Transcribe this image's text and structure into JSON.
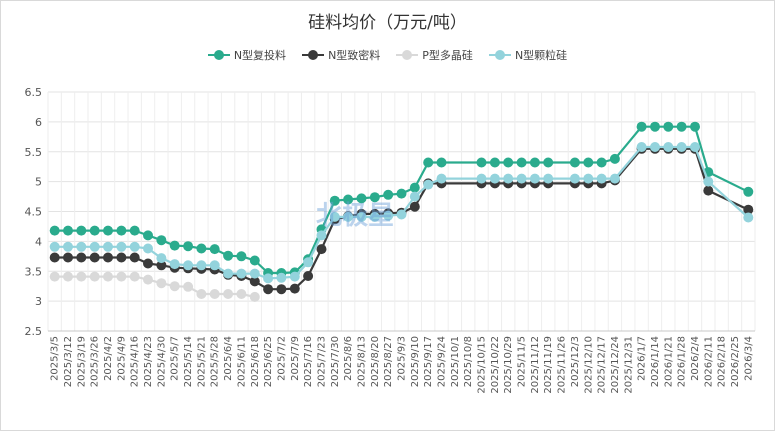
{
  "chart_data": {
    "type": "line",
    "title": "硅料均价（万元/吨）",
    "xlabel": "",
    "ylabel": "",
    "ylim": [
      2.5,
      6.5
    ],
    "yticks": [
      "2.5",
      "3",
      "3.5",
      "4",
      "4.5",
      "5",
      "5.5",
      "6",
      "6.5"
    ],
    "grid": true,
    "legend": "top-center",
    "x": [
      "2025/3/5",
      "2025/3/12",
      "2025/3/19",
      "2025/3/26",
      "2025/4/2",
      "2025/4/9",
      "2025/4/16",
      "2025/4/23",
      "2025/4/30",
      "2025/5/7",
      "2025/5/14",
      "2025/5/21",
      "2025/5/28",
      "2025/6/4",
      "2025/6/11",
      "2025/6/18",
      "2025/6/25",
      "2025/7/2",
      "2025/7/9",
      "2025/7/16",
      "2025/7/23",
      "2025/7/30",
      "2025/8/6",
      "2025/8/13",
      "2025/8/20",
      "2025/8/27",
      "2025/9/3",
      "2025/9/10",
      "2025/9/17",
      "2025/9/24",
      "2025/10/1",
      "2025/10/8",
      "2025/10/15",
      "2025/10/22",
      "2025/10/29",
      "2025/11/5",
      "2025/11/12",
      "2025/11/19",
      "2025/11/26",
      "2025/12/3",
      "2025/12/10",
      "2025/12/17",
      "2025/12/24",
      "2025/12/31",
      "2026/1/7",
      "2026/1/14",
      "2026/1/21",
      "2026/1/28",
      "2026/2/4",
      "2026/2/11",
      "2026/2/18",
      "2026/2/25",
      "2026/3/4"
    ],
    "x_tick_labels": [
      "2025/3/5",
      "2025/3/12",
      "2025/3/19",
      "2025/3/26",
      "2025/4/2",
      "2025/4/9",
      "2025/4/16",
      "2025/4/23",
      "2025/4/30",
      "2025/5/7",
      "2025/5/14",
      "2025/5/21",
      "2025/5/28",
      "2025/6/4",
      "2025/6/11",
      "2025/6/18",
      "2025/6/25",
      "2025/7/2",
      "2025/7/9",
      "2025/7/16",
      "2025/7/23",
      "2025/7/30",
      "2025/8/6",
      "2025/8/13",
      "2025/8/20",
      "2025/8/27",
      "2025/9/3",
      "2025/9/10",
      "2025/9/17",
      "2025/9/24",
      "2025/10/1",
      "2025/10/8",
      "2025/10/15",
      "2025/10/22",
      "2025/10/29",
      "2025/11/5",
      "2025/11/12",
      "2025/11/19",
      "2025/11/26",
      "2025/12/3",
      "2025/12/10",
      "2025/12/17",
      "2025/12/24",
      "2025/12/31",
      "2026/1/7",
      "2026/1/14",
      "2026/1/21",
      "2026/1/28",
      "2026/2/4",
      "2026/2/11",
      "2026/2/18",
      "2026/2/25",
      "2026/3/4"
    ],
    "series": [
      {
        "name": "N型复投料",
        "color": "#2aab8d",
        "values": [
          4.18,
          4.18,
          4.18,
          4.18,
          4.18,
          4.18,
          4.18,
          4.1,
          4.02,
          3.93,
          3.92,
          3.88,
          3.87,
          3.76,
          3.75,
          3.68,
          3.47,
          3.47,
          3.48,
          3.7,
          4.2,
          4.68,
          4.7,
          4.72,
          4.74,
          4.78,
          4.8,
          4.9,
          5.32,
          5.32,
          null,
          null,
          5.32,
          5.32,
          5.32,
          5.32,
          5.32,
          5.32,
          null,
          5.32,
          5.32,
          5.32,
          5.38,
          null,
          5.92,
          5.92,
          5.92,
          5.92,
          5.92,
          5.16,
          null,
          null,
          4.83
        ]
      },
      {
        "name": "N型致密料",
        "color": "#3a3a3a",
        "values": [
          3.73,
          3.73,
          3.73,
          3.73,
          3.73,
          3.73,
          3.73,
          3.63,
          3.6,
          3.56,
          3.55,
          3.54,
          3.53,
          3.44,
          3.42,
          3.33,
          3.2,
          3.2,
          3.21,
          3.42,
          3.87,
          4.37,
          4.42,
          4.46,
          4.46,
          4.47,
          4.48,
          4.58,
          4.97,
          4.97,
          null,
          null,
          4.97,
          4.97,
          4.97,
          4.97,
          4.97,
          4.97,
          null,
          4.97,
          4.97,
          4.97,
          5.02,
          null,
          5.55,
          5.55,
          5.55,
          5.55,
          5.55,
          4.85,
          null,
          null,
          4.53
        ]
      },
      {
        "name": "P型多晶硅",
        "color": "#d9d9d9",
        "values": [
          3.41,
          3.41,
          3.41,
          3.41,
          3.41,
          3.41,
          3.41,
          3.36,
          3.3,
          3.25,
          3.24,
          3.12,
          3.12,
          3.12,
          3.12,
          3.07,
          null,
          null,
          null,
          null,
          null,
          null,
          null,
          null,
          null,
          null,
          null,
          null,
          null,
          null,
          null,
          null,
          null,
          null,
          null,
          null,
          null,
          null,
          null,
          null,
          null,
          null,
          null,
          null,
          null,
          null,
          null,
          null,
          null,
          null,
          null,
          null,
          null
        ]
      },
      {
        "name": "N型颗粒硅",
        "color": "#93d3dc",
        "values": [
          3.91,
          3.91,
          3.91,
          3.91,
          3.91,
          3.91,
          3.91,
          3.88,
          3.72,
          3.62,
          3.6,
          3.6,
          3.6,
          3.46,
          3.46,
          3.46,
          3.38,
          3.39,
          3.41,
          3.65,
          4.1,
          4.41,
          4.41,
          4.41,
          4.41,
          4.43,
          4.45,
          4.75,
          4.95,
          5.05,
          null,
          null,
          5.05,
          5.05,
          5.05,
          5.05,
          5.05,
          5.05,
          null,
          5.05,
          5.05,
          5.05,
          5.05,
          null,
          5.58,
          5.58,
          5.58,
          5.58,
          5.58,
          5.0,
          null,
          null,
          4.4
        ]
      }
    ],
    "watermark": "北极星"
  }
}
